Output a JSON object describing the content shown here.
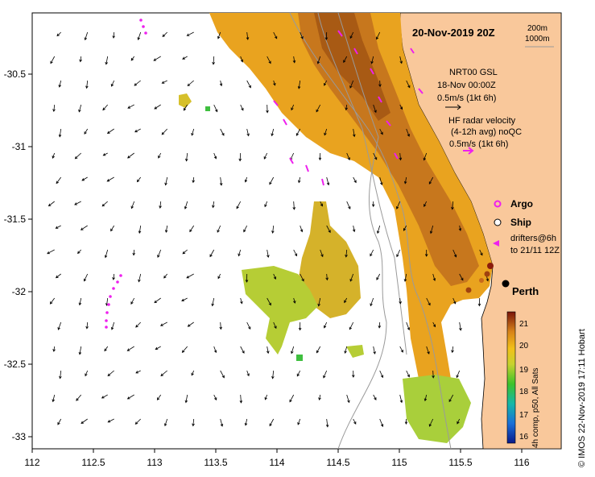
{
  "map": {
    "title": "20-Nov-2019 20Z",
    "depth_contours": [
      "200m",
      "1000m"
    ],
    "x_ticks": [
      "112",
      "112.5",
      "113",
      "113.5",
      "114",
      "114.5",
      "115",
      "115.5",
      "116"
    ],
    "y_ticks": [
      "-30.5",
      "-31",
      "-31.5",
      "-32",
      "-32.5",
      "-33"
    ],
    "model_legend": {
      "line1": "NRT00 GSL",
      "line2": "18-Nov 00:00Z",
      "line3": "0.5m/s (1kt 6h)"
    },
    "radar_legend": {
      "line1": "HF radar velocity",
      "line2": "(4-12h avg) noQC",
      "line3": "0.5m/s (1kt 6h)"
    },
    "symbols": {
      "argo": "Argo",
      "ship": "Ship",
      "drifters_line1": "drifters@6h",
      "drifters_line2": "to 21/11 12Z"
    },
    "place": "Perth",
    "colorbar": {
      "ticks": [
        "21",
        "20",
        "19",
        "18",
        "17",
        "16"
      ],
      "label": "4h comp, p50, All Sats"
    },
    "credit": "© IMOS 22-Nov-2019 17:11 Hobart",
    "colors": {
      "land": "#f9c89b",
      "sst_warm": "#c77a1f",
      "sst_mid": "#e8a31e",
      "sst_cool": "#b8cf34",
      "argo": "#ee20ee",
      "ship": "#000000"
    }
  }
}
